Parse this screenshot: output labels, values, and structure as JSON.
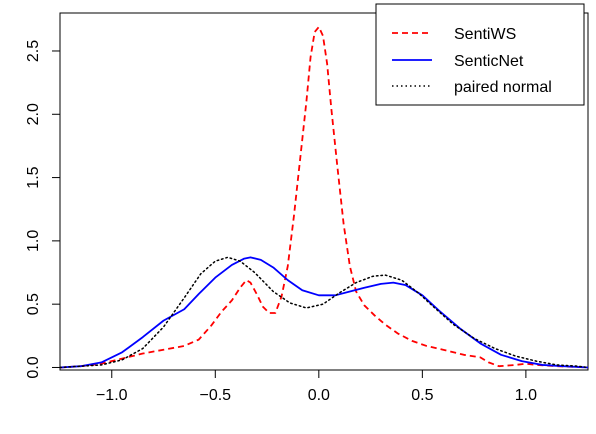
{
  "chart_data": {
    "type": "line",
    "title": "",
    "xlabel": "",
    "ylabel": "",
    "xlim": [
      -1.25,
      1.3
    ],
    "ylim": [
      -0.02,
      2.8
    ],
    "x_ticks": [
      -1.0,
      -0.5,
      0.0,
      0.5,
      1.0
    ],
    "x_tick_labels": [
      "−1.0",
      "−0.5",
      "0.0",
      "0.5",
      "1.0"
    ],
    "y_ticks": [
      0.0,
      0.5,
      1.0,
      1.5,
      2.0,
      2.5
    ],
    "y_tick_labels": [
      "0.0",
      "0.5",
      "1.0",
      "1.5",
      "2.0",
      "2.5"
    ],
    "grid": false,
    "legend_position": "top-right",
    "series": [
      {
        "name": "SentiWS",
        "color": "#ff0000",
        "style": "dashed",
        "points": [
          [
            -1.25,
            0.0
          ],
          [
            -1.15,
            0.01
          ],
          [
            -1.05,
            0.03
          ],
          [
            -0.95,
            0.07
          ],
          [
            -0.85,
            0.11
          ],
          [
            -0.75,
            0.14
          ],
          [
            -0.65,
            0.17
          ],
          [
            -0.58,
            0.22
          ],
          [
            -0.52,
            0.33
          ],
          [
            -0.47,
            0.44
          ],
          [
            -0.42,
            0.53
          ],
          [
            -0.38,
            0.63
          ],
          [
            -0.35,
            0.69
          ],
          [
            -0.33,
            0.67
          ],
          [
            -0.3,
            0.58
          ],
          [
            -0.27,
            0.48
          ],
          [
            -0.24,
            0.43
          ],
          [
            -0.21,
            0.43
          ],
          [
            -0.18,
            0.56
          ],
          [
            -0.15,
            0.8
          ],
          [
            -0.12,
            1.2
          ],
          [
            -0.09,
            1.65
          ],
          [
            -0.06,
            2.1
          ],
          [
            -0.04,
            2.45
          ],
          [
            -0.02,
            2.65
          ],
          [
            0.0,
            2.69
          ],
          [
            0.02,
            2.62
          ],
          [
            0.04,
            2.4
          ],
          [
            0.06,
            2.05
          ],
          [
            0.09,
            1.58
          ],
          [
            0.12,
            1.13
          ],
          [
            0.15,
            0.8
          ],
          [
            0.18,
            0.6
          ],
          [
            0.22,
            0.49
          ],
          [
            0.27,
            0.41
          ],
          [
            0.32,
            0.34
          ],
          [
            0.38,
            0.27
          ],
          [
            0.45,
            0.21
          ],
          [
            0.52,
            0.17
          ],
          [
            0.6,
            0.14
          ],
          [
            0.7,
            0.1
          ],
          [
            0.78,
            0.08
          ],
          [
            0.82,
            0.04
          ],
          [
            0.87,
            0.01
          ],
          [
            0.95,
            0.02
          ],
          [
            1.0,
            0.03
          ],
          [
            1.05,
            0.02
          ],
          [
            1.15,
            0.01
          ],
          [
            1.3,
            0.0
          ]
        ]
      },
      {
        "name": "SenticNet",
        "color": "#0000ff",
        "style": "solid",
        "points": [
          [
            -1.25,
            0.0
          ],
          [
            -1.15,
            0.01
          ],
          [
            -1.05,
            0.04
          ],
          [
            -0.95,
            0.12
          ],
          [
            -0.85,
            0.24
          ],
          [
            -0.75,
            0.37
          ],
          [
            -0.65,
            0.46
          ],
          [
            -0.58,
            0.58
          ],
          [
            -0.5,
            0.71
          ],
          [
            -0.42,
            0.81
          ],
          [
            -0.36,
            0.86
          ],
          [
            -0.33,
            0.87
          ],
          [
            -0.28,
            0.85
          ],
          [
            -0.22,
            0.79
          ],
          [
            -0.15,
            0.69
          ],
          [
            -0.08,
            0.61
          ],
          [
            0.0,
            0.57
          ],
          [
            0.08,
            0.57
          ],
          [
            0.15,
            0.6
          ],
          [
            0.22,
            0.63
          ],
          [
            0.3,
            0.66
          ],
          [
            0.36,
            0.67
          ],
          [
            0.42,
            0.65
          ],
          [
            0.5,
            0.57
          ],
          [
            0.58,
            0.45
          ],
          [
            0.68,
            0.31
          ],
          [
            0.78,
            0.19
          ],
          [
            0.88,
            0.1
          ],
          [
            0.98,
            0.05
          ],
          [
            1.08,
            0.02
          ],
          [
            1.18,
            0.01
          ],
          [
            1.3,
            0.0
          ]
        ]
      },
      {
        "name": "paired normal",
        "color": "#000000",
        "style": "dotted",
        "points": [
          [
            -1.25,
            0.0
          ],
          [
            -1.15,
            0.01
          ],
          [
            -1.05,
            0.02
          ],
          [
            -0.95,
            0.06
          ],
          [
            -0.85,
            0.15
          ],
          [
            -0.75,
            0.32
          ],
          [
            -0.65,
            0.55
          ],
          [
            -0.57,
            0.74
          ],
          [
            -0.5,
            0.84
          ],
          [
            -0.44,
            0.87
          ],
          [
            -0.38,
            0.84
          ],
          [
            -0.31,
            0.75
          ],
          [
            -0.22,
            0.6
          ],
          [
            -0.14,
            0.51
          ],
          [
            -0.06,
            0.47
          ],
          [
            0.02,
            0.5
          ],
          [
            0.1,
            0.59
          ],
          [
            0.18,
            0.67
          ],
          [
            0.26,
            0.72
          ],
          [
            0.32,
            0.73
          ],
          [
            0.4,
            0.69
          ],
          [
            0.48,
            0.59
          ],
          [
            0.56,
            0.47
          ],
          [
            0.65,
            0.34
          ],
          [
            0.75,
            0.23
          ],
          [
            0.85,
            0.15
          ],
          [
            0.95,
            0.09
          ],
          [
            1.05,
            0.05
          ],
          [
            1.15,
            0.02
          ],
          [
            1.25,
            0.01
          ],
          [
            1.3,
            0.0
          ]
        ]
      }
    ]
  }
}
